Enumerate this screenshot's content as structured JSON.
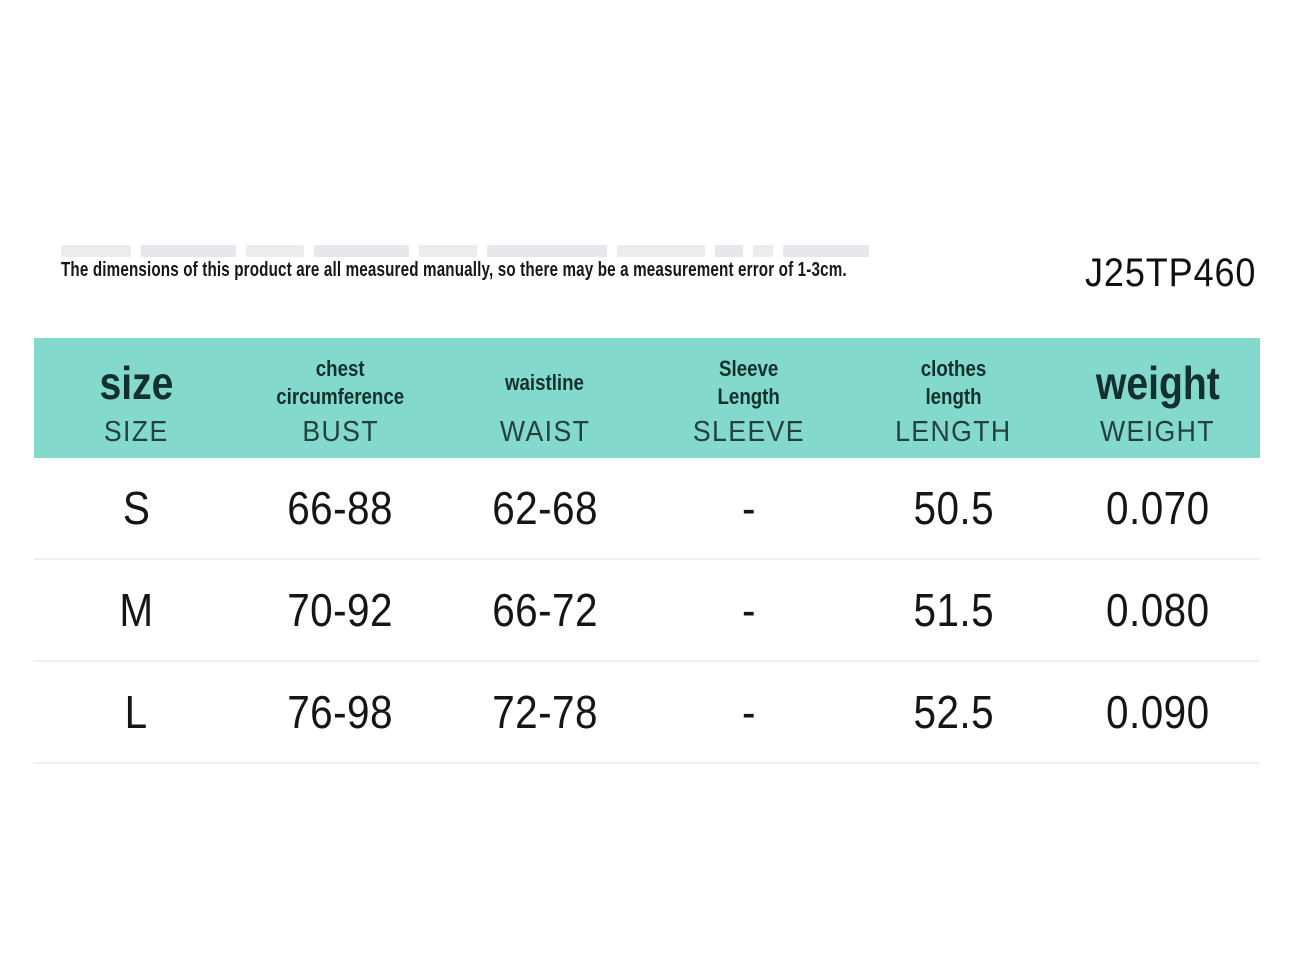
{
  "header": {
    "disclaimer": "The dimensions of this product are all measured manually, so there may be a measurement error of 1-3cm.",
    "product_code": "J25TP460"
  },
  "colors": {
    "table_header_bg": "#82d9cc",
    "heading_text": "#13302c",
    "subheading_text": "#24423d",
    "body_text": "#151515",
    "row_divider": "#efefef"
  },
  "chart_data": {
    "type": "table",
    "column_headers": [
      {
        "label": "size",
        "line1": "size",
        "line2": "",
        "sublabel": "SIZE"
      },
      {
        "label": "chest circumference",
        "line1": "chest",
        "line2": "circumference",
        "sublabel": "BUST"
      },
      {
        "label": "waistline",
        "line1": "waistline",
        "line2": "",
        "sublabel": "WAIST"
      },
      {
        "label": "Sleeve Length",
        "line1": "Sleeve",
        "line2": "Length",
        "sublabel": "SLEEVE"
      },
      {
        "label": "clothes length",
        "line1": "clothes",
        "line2": "length",
        "sublabel": "LENGTH"
      },
      {
        "label": "weight",
        "line1": "weight",
        "line2": "",
        "sublabel": "WEIGHT"
      }
    ],
    "rows": [
      [
        "S",
        "66-88",
        "62-68",
        "-",
        "50.5",
        "0.070"
      ],
      [
        "M",
        "70-92",
        "66-72",
        "-",
        "51.5",
        "0.080"
      ],
      [
        "L",
        "76-98",
        "72-78",
        "-",
        "52.5",
        "0.090"
      ]
    ]
  }
}
